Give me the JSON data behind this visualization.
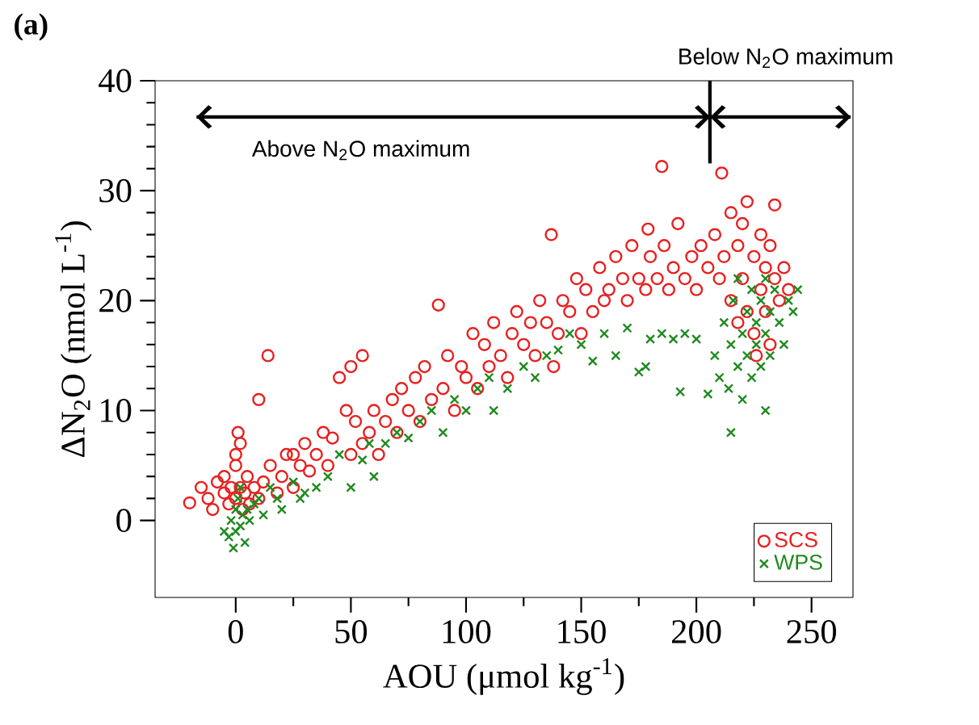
{
  "chart_data": {
    "type": "scatter",
    "title": "(a)",
    "xlabel": "AOU (μmol kg$^{-1}$)",
    "ylabel": "ΔN$_{2}$O (nmol L$^{-1}$)",
    "xlim": [
      -35,
      268
    ],
    "ylim": [
      -7,
      40
    ],
    "xticks": [
      0,
      50,
      100,
      150,
      200,
      250
    ],
    "yticks": [
      0,
      10,
      20,
      30,
      40
    ],
    "legend": "bottom right",
    "annotations": [
      "Above N$_{2}$O maximum",
      "Below N$_{2}$O maximum"
    ],
    "series": [
      {
        "name": "SCS",
        "color": "#e82020",
        "marker": "circle",
        "x": [
          -20,
          -15,
          -12,
          -10,
          -8,
          -5,
          -5,
          -3,
          -2,
          0,
          0,
          0,
          1,
          2,
          2,
          3,
          4,
          5,
          6,
          8,
          10,
          10,
          12,
          14,
          15,
          18,
          20,
          22,
          25,
          25,
          28,
          30,
          32,
          35,
          38,
          40,
          42,
          45,
          48,
          50,
          50,
          52,
          55,
          55,
          58,
          60,
          62,
          65,
          68,
          70,
          72,
          75,
          78,
          80,
          82,
          85,
          88,
          90,
          92,
          95,
          98,
          100,
          103,
          105,
          108,
          110,
          112,
          115,
          118,
          120,
          122,
          125,
          128,
          130,
          132,
          135,
          137,
          138,
          140,
          142,
          145,
          148,
          150,
          152,
          155,
          158,
          160,
          162,
          165,
          168,
          170,
          172,
          175,
          178,
          179,
          180,
          183,
          185,
          186,
          188,
          190,
          192,
          195,
          198,
          200,
          202,
          205,
          208,
          210,
          211,
          212,
          215,
          215,
          218,
          218,
          220,
          220,
          222,
          222,
          225,
          225,
          228,
          228,
          230,
          230,
          232,
          234,
          234,
          236,
          238,
          240,
          232,
          226
        ],
        "values": [
          1.6,
          3,
          2,
          1,
          3.5,
          2.5,
          4,
          1.5,
          3,
          2,
          5,
          6,
          8,
          7,
          3,
          1,
          2.5,
          4,
          1.5,
          3,
          2,
          11,
          3.5,
          15,
          5,
          2.5,
          4,
          6,
          3,
          6,
          5,
          7,
          4.5,
          6,
          8,
          5,
          7.5,
          13,
          10,
          14,
          6,
          9,
          15,
          7,
          8,
          10,
          6,
          9,
          11,
          8,
          12,
          10,
          13,
          9,
          14,
          11,
          19.6,
          12,
          15,
          10,
          14,
          13,
          17,
          12,
          16,
          14,
          18,
          15,
          13,
          17,
          19,
          16,
          18,
          15,
          20,
          18,
          26,
          14,
          17,
          20,
          19,
          22,
          17,
          21,
          19,
          23,
          20,
          21,
          24,
          22,
          20,
          25,
          22,
          21,
          26.5,
          24,
          22,
          32.2,
          25,
          21,
          23,
          27,
          22,
          24,
          21,
          25,
          23,
          26,
          22,
          31.6,
          24,
          28,
          20,
          25,
          18,
          27,
          22,
          29,
          19,
          24,
          17,
          26,
          21,
          23,
          19,
          25,
          28.7,
          22,
          20,
          23,
          21,
          16,
          15
        ]
      },
      {
        "type": "line",
        "color": "#000000",
        "marker": "none",
        "x": [
          -17,
          206,
          267
        ],
        "values": [
          36.7,
          36.7,
          36.7
        ]
      },
      {
        "name": "WPS",
        "color": "#1e8a1e",
        "marker": "cross",
        "x": [
          -5,
          -3,
          -2,
          -1,
          0,
          0,
          1,
          2,
          2,
          3,
          4,
          5,
          6,
          8,
          10,
          12,
          15,
          18,
          20,
          25,
          28,
          30,
          35,
          40,
          45,
          50,
          55,
          58,
          60,
          65,
          70,
          75,
          80,
          85,
          90,
          95,
          100,
          105,
          110,
          112,
          118,
          125,
          130,
          135,
          140,
          145,
          150,
          155,
          160,
          165,
          170,
          175,
          178,
          180,
          185,
          190,
          193,
          195,
          200,
          205,
          208,
          210,
          212,
          214,
          215,
          216,
          218,
          218,
          220,
          220,
          222,
          222,
          224,
          224,
          226,
          226,
          228,
          228,
          230,
          230,
          232,
          232,
          234,
          236,
          238,
          240,
          242,
          244,
          215,
          230
        ],
        "values": [
          -1,
          -1.5,
          0,
          -2.5,
          -1,
          1,
          2,
          -0.5,
          3,
          0.5,
          -2,
          1,
          0,
          1.5,
          2,
          0.5,
          3,
          2,
          1,
          3.5,
          2,
          2.5,
          3,
          4,
          6,
          3,
          5.5,
          7,
          4,
          7,
          8,
          7.5,
          9,
          10,
          8,
          11,
          10,
          12,
          13,
          10,
          12,
          14,
          13,
          15,
          15.5,
          17,
          16,
          14.5,
          17,
          15,
          17.5,
          13.5,
          14,
          16.5,
          17,
          16.5,
          11.7,
          17,
          16.5,
          11.5,
          15,
          13,
          18,
          12,
          16,
          20,
          14,
          22,
          17,
          11,
          19,
          15,
          21,
          13,
          18,
          16,
          20,
          14,
          17,
          22,
          19,
          15,
          21,
          18,
          16,
          20,
          19,
          21,
          8,
          10
        ]
      }
    ]
  }
}
